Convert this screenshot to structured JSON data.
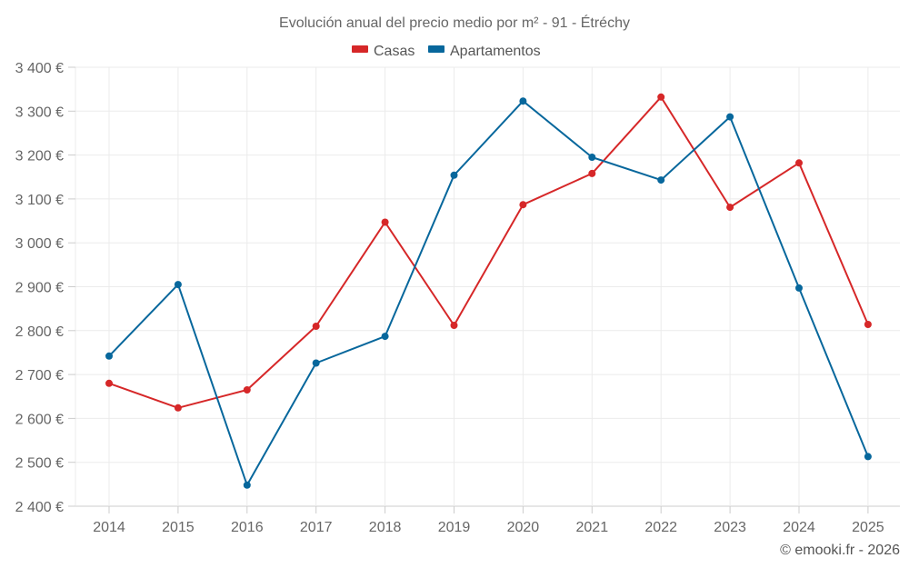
{
  "chart_data": {
    "type": "line",
    "title": "Evolución anual del precio medio por m² - 91 - Étréchy",
    "xlabel": "",
    "ylabel": "",
    "x": [
      "2014",
      "2015",
      "2016",
      "2017",
      "2018",
      "2019",
      "2020",
      "2021",
      "2022",
      "2023",
      "2024",
      "2025"
    ],
    "ylim": [
      2400,
      3400
    ],
    "y_ticks": [
      2400,
      2500,
      2600,
      2700,
      2800,
      2900,
      3000,
      3100,
      3200,
      3300,
      3400
    ],
    "y_tick_labels": [
      "2 400 €",
      "2 500 €",
      "2 600 €",
      "2 700 €",
      "2 800 €",
      "2 900 €",
      "3 000 €",
      "3 100 €",
      "3 200 €",
      "3 300 €",
      "3 400 €"
    ],
    "grid": true,
    "legend_position": "top-center",
    "series": [
      {
        "name": "Casas",
        "color": "#d62728",
        "values": [
          2680,
          2624,
          2665,
          2810,
          3047,
          2812,
          3087,
          3158,
          3332,
          3081,
          3182,
          2814
        ]
      },
      {
        "name": "Apartamentos",
        "color": "#07679c",
        "values": [
          2742,
          2905,
          2448,
          2726,
          2787,
          3154,
          3323,
          3195,
          3143,
          3287,
          2897,
          2513
        ]
      }
    ],
    "credit": "© emooki.fr - 2026"
  }
}
